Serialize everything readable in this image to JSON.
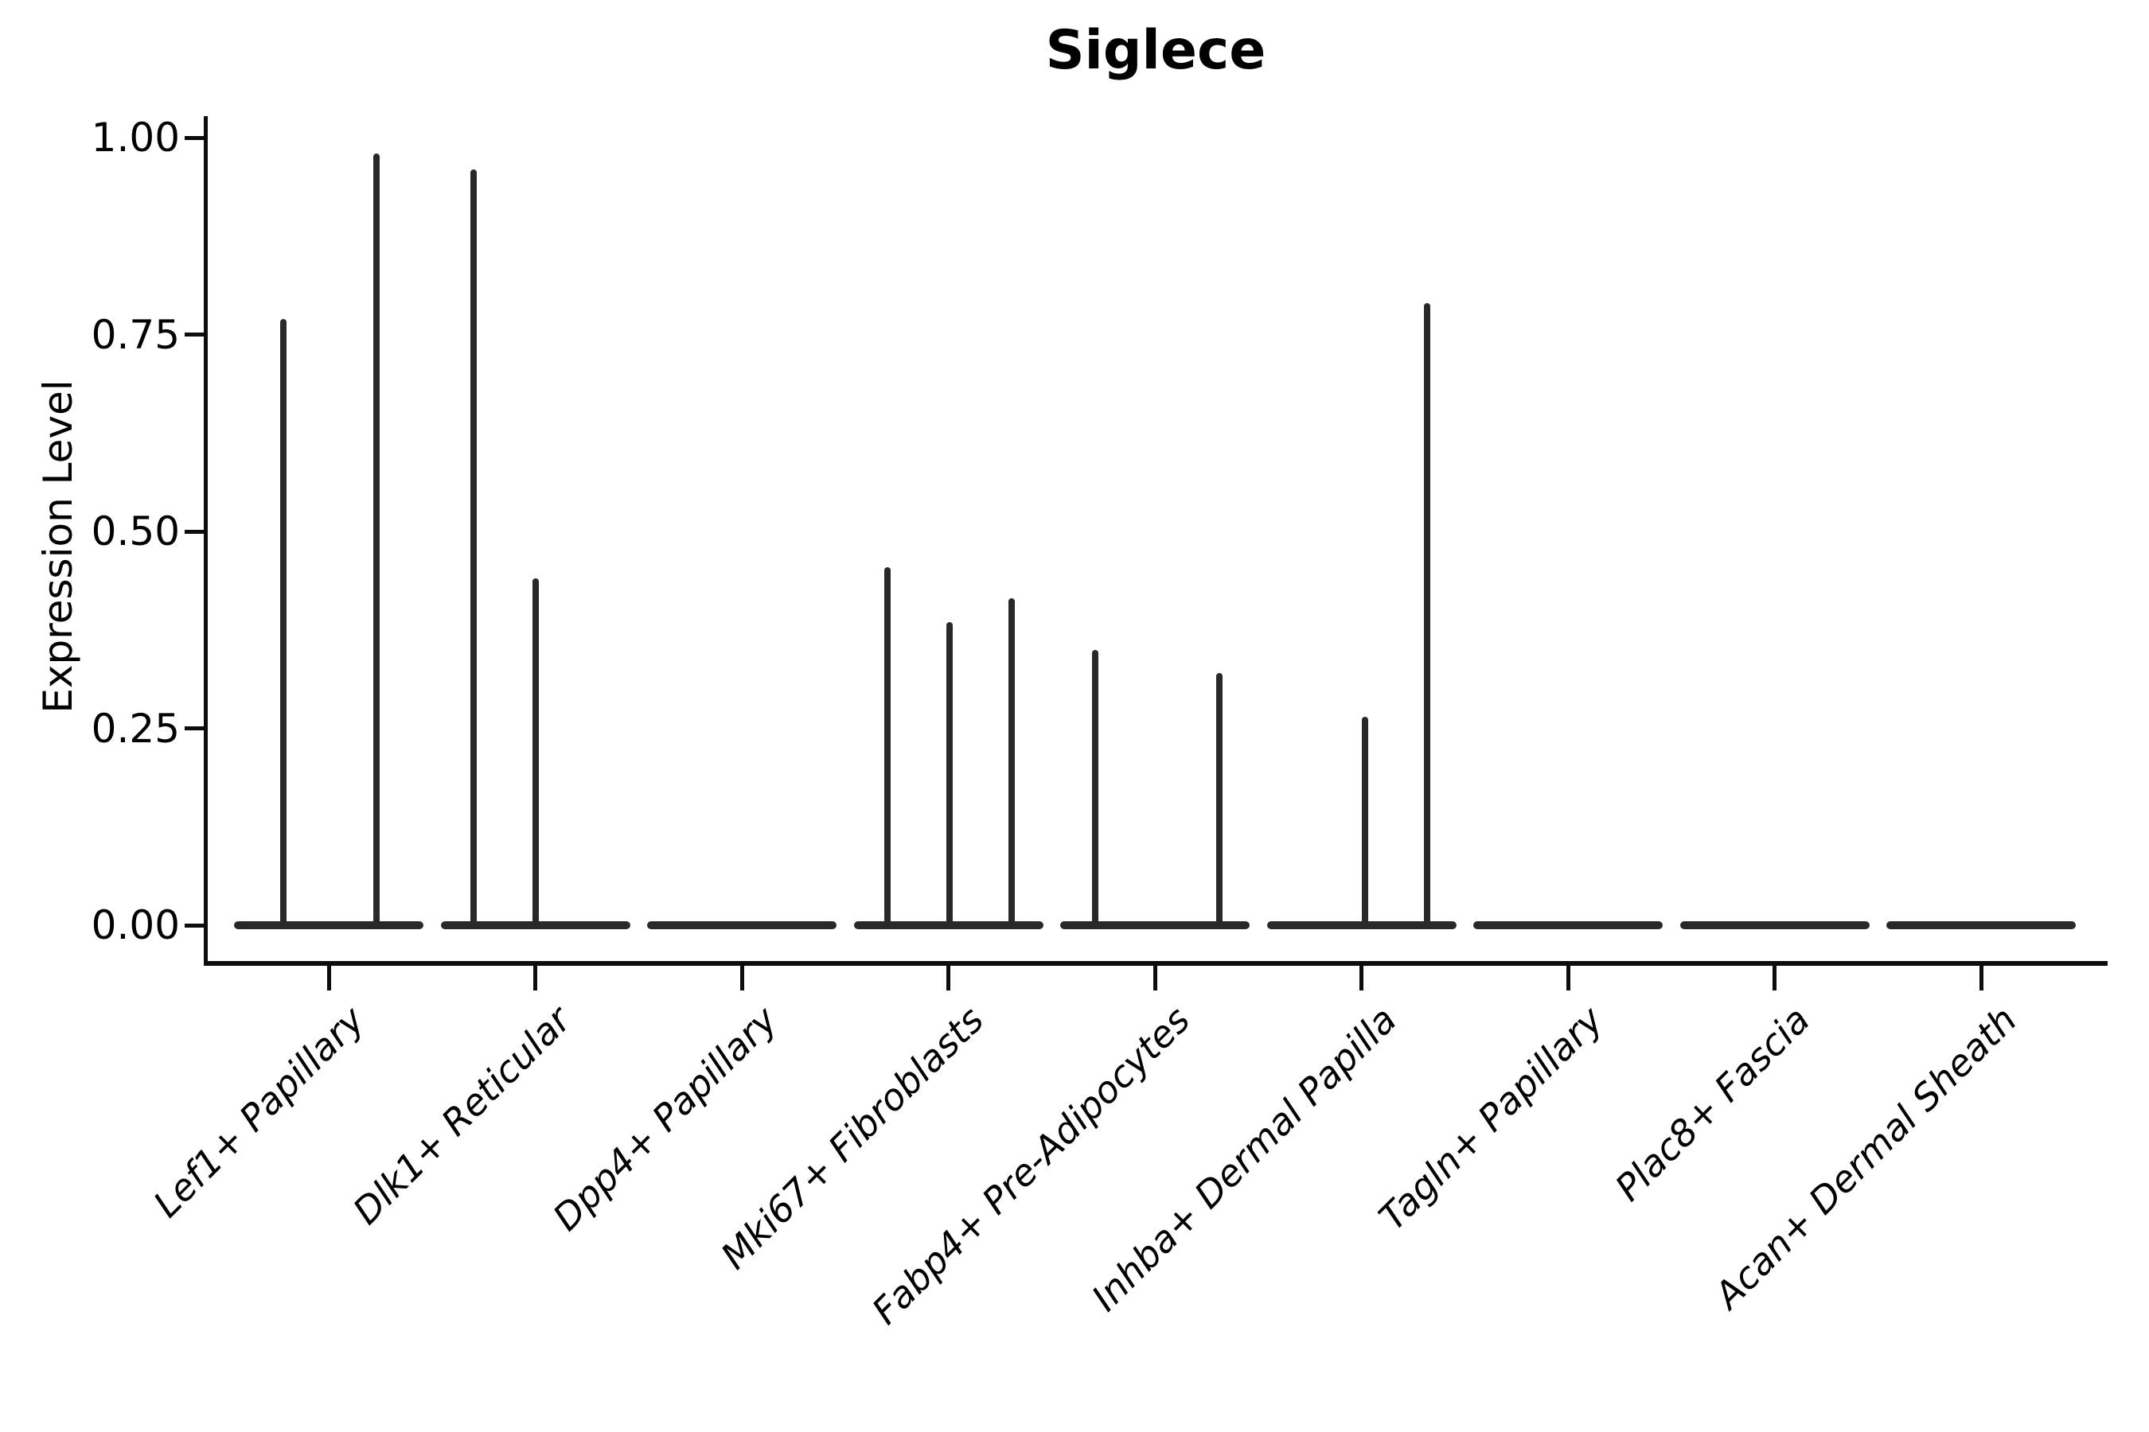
{
  "chart_data": {
    "type": "violin",
    "title": "Siglece",
    "ylabel": "Expression Level",
    "xlabel": "",
    "ylim": [
      0,
      1.0
    ],
    "ytick_labels": [
      "0.00",
      "0.25",
      "0.50",
      "0.75",
      "1.00"
    ],
    "ytick_values": [
      0,
      0.25,
      0.5,
      0.75,
      1.0
    ],
    "grid": "off",
    "legend": "none",
    "categories": [
      "Lef1+ Papillary",
      "Dlk1+ Reticular",
      "Dpp4+ Papillary",
      "Mki67+ Fibroblasts",
      "Fabp4+ Pre-Adipocytes",
      "Inhba+ Dermal Papilla",
      "Tagln+ Papillary",
      "Plac8+ Fascia",
      "Acan+ Dermal Sheath"
    ],
    "description": "Each category shows a flat violin body concentrated at expression 0 with thin density spikes reaching the listed peak expression values.",
    "violins": [
      {
        "category": "Lef1+ Papillary",
        "base_value": 0,
        "spikes": [
          {
            "offset": -57,
            "peak": 0.77
          },
          {
            "offset": 60,
            "peak": 0.98
          }
        ]
      },
      {
        "category": "Dlk1+ Reticular",
        "base_value": 0,
        "spikes": [
          {
            "offset": -78,
            "peak": 0.96
          },
          {
            "offset": 0,
            "peak": 0.44
          }
        ]
      },
      {
        "category": "Dpp4+ Papillary",
        "base_value": 0,
        "spikes": []
      },
      {
        "category": "Mki67+ Fibroblasts",
        "base_value": 0,
        "spikes": [
          {
            "offset": -77,
            "peak": 0.455
          },
          {
            "offset": 1,
            "peak": 0.385
          },
          {
            "offset": 79,
            "peak": 0.415
          }
        ]
      },
      {
        "category": "Fabp4+ Pre-Adipocytes",
        "base_value": 0,
        "spikes": [
          {
            "offset": -75,
            "peak": 0.35
          },
          {
            "offset": 81,
            "peak": 0.32
          }
        ]
      },
      {
        "category": "Inhba+ Dermal Papilla",
        "base_value": 0,
        "spikes": [
          {
            "offset": 4,
            "peak": 0.265
          },
          {
            "offset": 82,
            "peak": 0.79
          }
        ]
      },
      {
        "category": "Tagln+ Papillary",
        "base_value": 0,
        "spikes": []
      },
      {
        "category": "Plac8+ Fascia",
        "base_value": 0,
        "spikes": []
      },
      {
        "category": "Acan+ Dermal Sheath",
        "base_value": 0,
        "spikes": []
      }
    ]
  }
}
